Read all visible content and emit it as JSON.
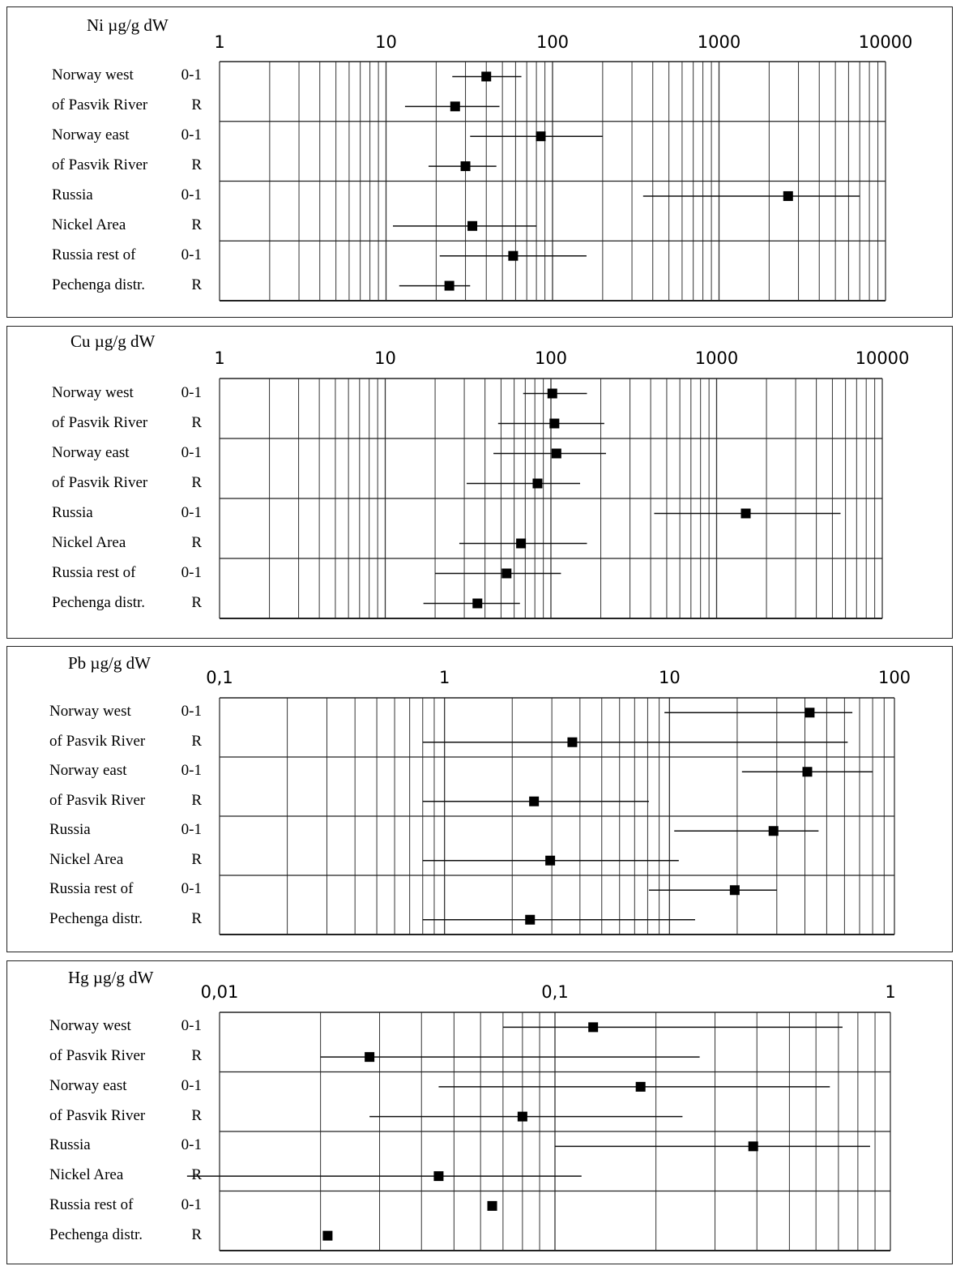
{
  "chart_data": [
    {
      "type": "scatter",
      "title": "Ni µg/g dW",
      "xscale": "log",
      "xlim": [
        1,
        10000
      ],
      "tick_labels": [
        "1",
        "10",
        "100",
        "1000",
        "10000"
      ],
      "grid": true,
      "rows": [
        {
          "name": "Norway west",
          "code": "0-1",
          "median": 40,
          "min": 25,
          "max": 65
        },
        {
          "name": "of Pasvik River",
          "code": "R",
          "median": 26,
          "min": 13,
          "max": 48
        },
        {
          "name": "Norway east",
          "code": "0-1",
          "median": 85,
          "min": 32,
          "max": 200
        },
        {
          "name": "of Pasvik River",
          "code": "R",
          "median": 30,
          "min": 18,
          "max": 46
        },
        {
          "name": "Russia",
          "code": "0-1",
          "median": 2600,
          "min": 350,
          "max": 7000
        },
        {
          "name": "Nickel Area",
          "code": "R",
          "median": 33,
          "min": 11,
          "max": 80
        },
        {
          "name": "Russia rest of",
          "code": "0-1",
          "median": 58,
          "min": 21,
          "max": 160
        },
        {
          "name": "Pechenga distr.",
          "code": "R",
          "median": 24,
          "min": 12,
          "max": 32
        }
      ]
    },
    {
      "type": "scatter",
      "title": "Cu µg/g dW",
      "xscale": "log",
      "xlim": [
        1,
        10000
      ],
      "tick_labels": [
        "1",
        "10",
        "100",
        "1000",
        "10000"
      ],
      "grid": true,
      "rows": [
        {
          "name": "Norway west",
          "code": "0-1",
          "median": 102,
          "min": 68,
          "max": 165
        },
        {
          "name": "of Pasvik River",
          "code": "R",
          "median": 105,
          "min": 48,
          "max": 210
        },
        {
          "name": "Norway east",
          "code": "0-1",
          "median": 108,
          "min": 45,
          "max": 215
        },
        {
          "name": "of Pasvik River",
          "code": "R",
          "median": 83,
          "min": 31,
          "max": 150
        },
        {
          "name": "Russia",
          "code": "0-1",
          "median": 1500,
          "min": 420,
          "max": 5600
        },
        {
          "name": "Nickel Area",
          "code": "R",
          "median": 66,
          "min": 28,
          "max": 165
        },
        {
          "name": "Russia rest of",
          "code": "0-1",
          "median": 54,
          "min": 20,
          "max": 115
        },
        {
          "name": "Pechenga distr.",
          "code": "R",
          "median": 36,
          "min": 17,
          "max": 65
        }
      ]
    },
    {
      "type": "scatter",
      "title": "Pb µg/g dW",
      "xscale": "log",
      "xlim": [
        0.1,
        100
      ],
      "tick_labels": [
        "0,1",
        "1",
        "10",
        "100"
      ],
      "grid": true,
      "rows": [
        {
          "name": "Norway west",
          "code": "0-1",
          "median": 42,
          "min": 9.5,
          "max": 65
        },
        {
          "name": "of Pasvik River",
          "code": "R",
          "median": 3.7,
          "min": 0.8,
          "max": 62
        },
        {
          "name": "Norway east",
          "code": "0-1",
          "median": 41,
          "min": 21,
          "max": 80
        },
        {
          "name": "of Pasvik River",
          "code": "R",
          "median": 2.5,
          "min": 0.8,
          "max": 8.1
        },
        {
          "name": "Russia",
          "code": "0-1",
          "median": 29,
          "min": 10.5,
          "max": 46
        },
        {
          "name": "Nickel Area",
          "code": "R",
          "median": 2.95,
          "min": 0.8,
          "max": 11
        },
        {
          "name": "Russia rest of",
          "code": "0-1",
          "median": 19.5,
          "min": 8.1,
          "max": 30
        },
        {
          "name": "Pechenga distr.",
          "code": "R",
          "median": 2.4,
          "min": 0.8,
          "max": 13
        }
      ]
    },
    {
      "type": "scatter",
      "title": "Hg µg/g dW",
      "xscale": "log",
      "xlim": [
        0.01,
        1
      ],
      "tick_labels": [
        "0,01",
        "0,1",
        "1"
      ],
      "grid": true,
      "rows": [
        {
          "name": "Norway west",
          "code": "0-1",
          "median": 0.13,
          "min": 0.07,
          "max": 0.72
        },
        {
          "name": "of Pasvik River",
          "code": "R",
          "median": 0.028,
          "min": 0.02,
          "max": 0.27
        },
        {
          "name": "Norway east",
          "code": "0-1",
          "median": 0.18,
          "min": 0.045,
          "max": 0.66
        },
        {
          "name": "of Pasvik River",
          "code": "R",
          "median": 0.08,
          "min": 0.028,
          "max": 0.24
        },
        {
          "name": "Russia",
          "code": "0-1",
          "median": 0.39,
          "min": 0.1,
          "max": 0.87
        },
        {
          "name": "Nickel Area",
          "code": "R",
          "median": 0.045,
          "min": 0.008,
          "max": 0.12
        },
        {
          "name": "Russia rest of",
          "code": "0-1",
          "median": 0.065,
          "min": null,
          "max": null
        },
        {
          "name": "Pechenga distr.",
          "code": "R",
          "median": 0.021,
          "min": null,
          "max": null
        }
      ]
    }
  ]
}
